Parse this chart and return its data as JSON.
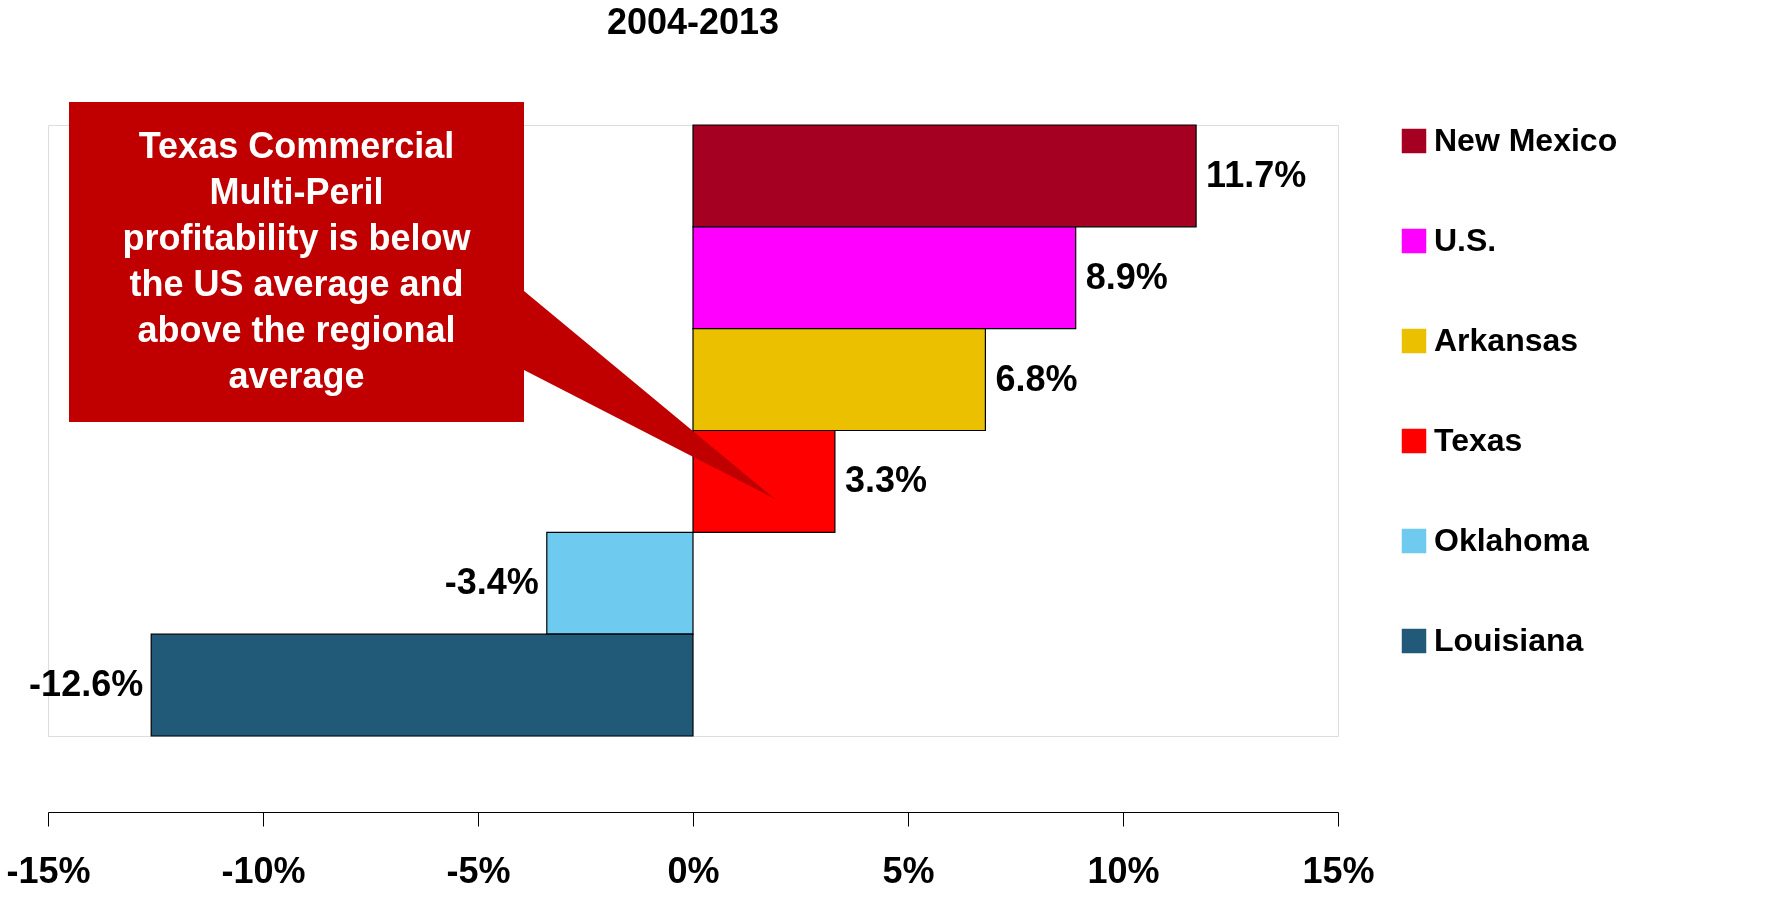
{
  "chart_data": {
    "type": "bar",
    "orientation": "horizontal",
    "stacked": true,
    "title": "2004-2013",
    "categories": [
      null,
      null,
      null,
      null,
      null,
      null
    ],
    "series": [
      {
        "name": "New Mexico",
        "color": "#a50021",
        "values": [
          11.7,
          null,
          null,
          null,
          null,
          null
        ],
        "value_labels": [
          "11.7%",
          null,
          null,
          null,
          null,
          null
        ]
      },
      {
        "name": "U.S.",
        "color": "#ff00ff",
        "values": [
          null,
          8.9,
          null,
          null,
          null,
          null
        ],
        "value_labels": [
          null,
          "8.9%",
          null,
          null,
          null,
          null
        ]
      },
      {
        "name": "Arkansas",
        "color": "#ebc000",
        "values": [
          null,
          null,
          6.8,
          null,
          null,
          null
        ],
        "value_labels": [
          null,
          null,
          "6.8%",
          null,
          null,
          null
        ]
      },
      {
        "name": "Texas",
        "color": "#ff0000",
        "values": [
          null,
          null,
          null,
          3.3,
          null,
          null
        ],
        "value_labels": [
          null,
          null,
          null,
          "3.3%",
          null,
          null
        ]
      },
      {
        "name": "Oklahoma",
        "color": "#6ecbef",
        "values": [
          null,
          null,
          null,
          null,
          -3.4,
          null
        ],
        "value_labels": [
          null,
          null,
          null,
          null,
          "-3.4%",
          null
        ]
      },
      {
        "name": "Louisiana",
        "color": "#215a78",
        "values": [
          null,
          null,
          null,
          null,
          null,
          -12.6
        ],
        "value_labels": [
          null,
          null,
          null,
          null,
          null,
          "-12.6%"
        ]
      }
    ],
    "xlim": [
      -15,
      15
    ],
    "xticks": [
      {
        "value": -15,
        "label": "-15%"
      },
      {
        "value": -10,
        "label": "-10%"
      },
      {
        "value": -5,
        "label": "-5%"
      },
      {
        "value": 0,
        "label": "0%"
      },
      {
        "value": 5,
        "label": "5%"
      },
      {
        "value": 10,
        "label": "10%"
      },
      {
        "value": 15,
        "label": "15%"
      }
    ],
    "annotations": [
      "Texas Commercial Multi-Peril profitability is below the US average and above the regional average"
    ],
    "legend": "right",
    "tick_labels": "x",
    "grid": false
  }
}
